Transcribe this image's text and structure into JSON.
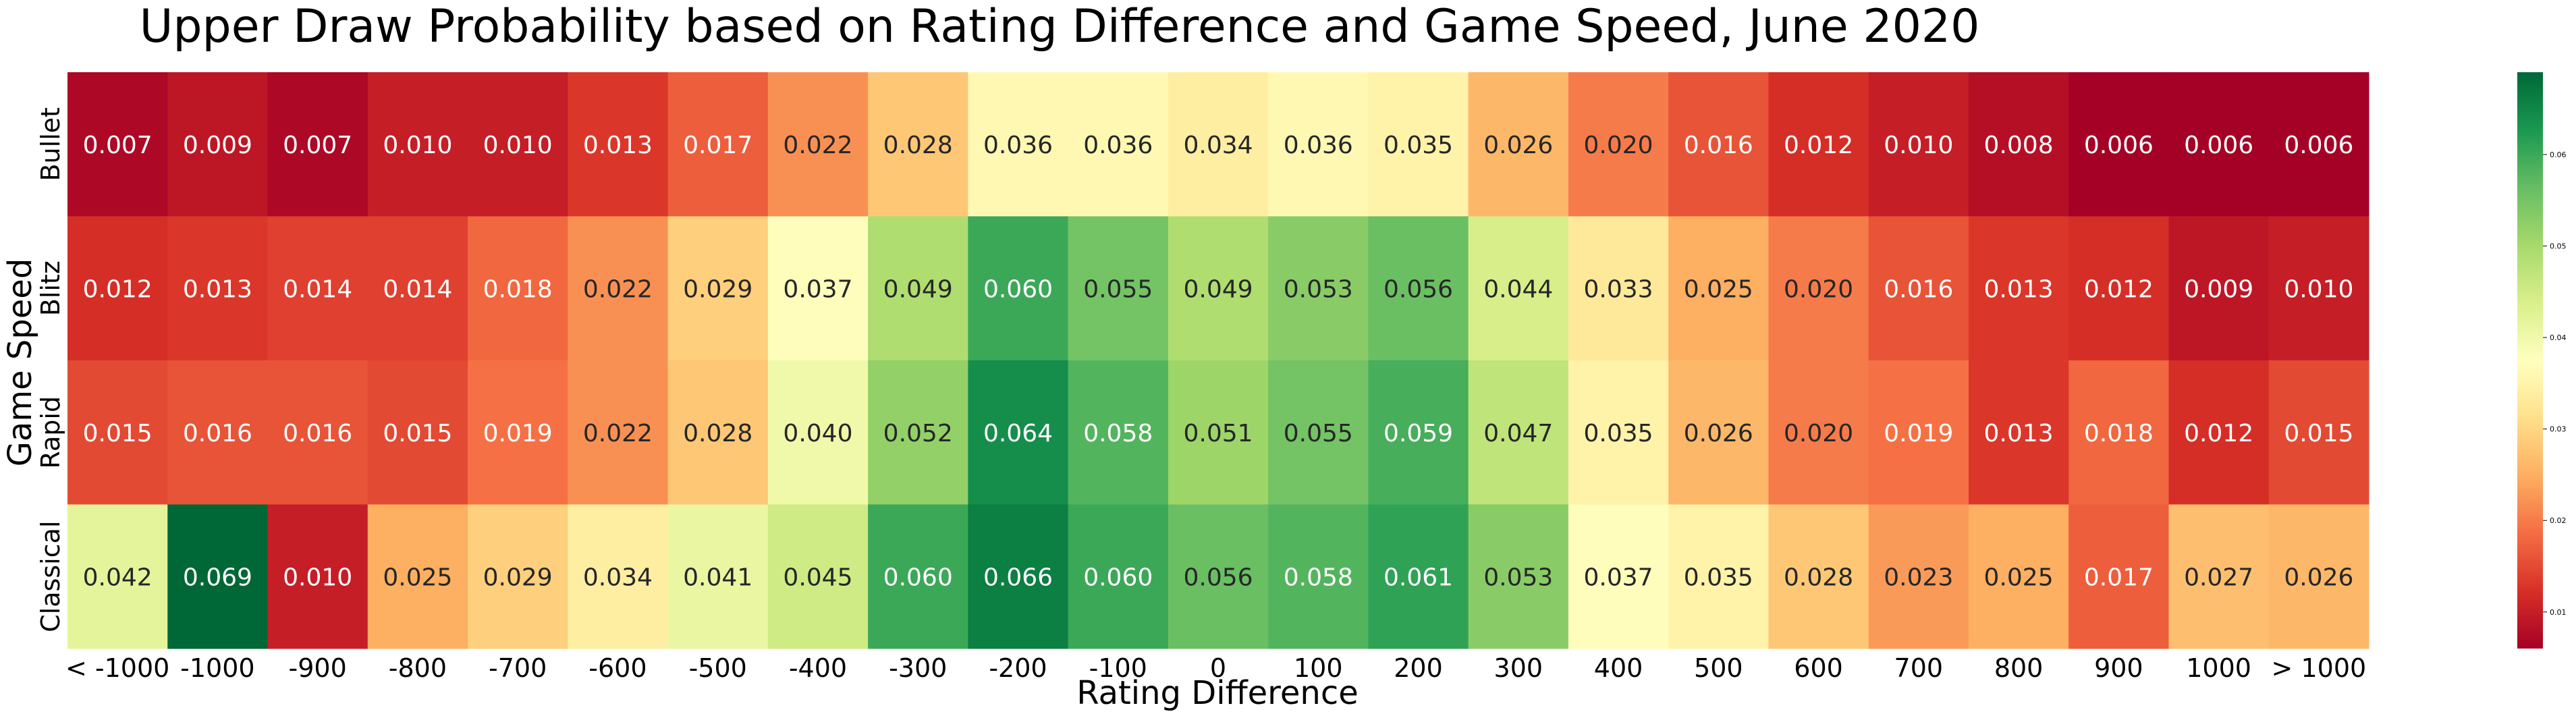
{
  "chart_data": {
    "type": "heatmap",
    "title": "Upper Draw Probability based on Rating Difference and Game Speed, June 2020",
    "xlabel": "Rating Difference",
    "ylabel": "Game Speed",
    "x_categories": [
      "< -1000",
      "-1000",
      "-900",
      "-800",
      "-700",
      "-600",
      "-500",
      "-400",
      "-300",
      "-200",
      "-100",
      "0",
      "100",
      "200",
      "300",
      "400",
      "500",
      "600",
      "700",
      "800",
      "900",
      "1000",
      "> 1000"
    ],
    "y_categories": [
      "Bullet",
      "Blitz",
      "Rapid",
      "Classical"
    ],
    "values": [
      [
        0.007,
        0.009,
        0.007,
        0.01,
        0.01,
        0.013,
        0.017,
        0.022,
        0.028,
        0.036,
        0.036,
        0.034,
        0.036,
        0.035,
        0.026,
        0.02,
        0.016,
        0.012,
        0.01,
        0.008,
        0.006,
        0.006,
        0.006
      ],
      [
        0.012,
        0.013,
        0.014,
        0.014,
        0.018,
        0.022,
        0.029,
        0.037,
        0.049,
        0.06,
        0.055,
        0.049,
        0.053,
        0.056,
        0.044,
        0.033,
        0.025,
        0.02,
        0.016,
        0.013,
        0.012,
        0.009,
        0.01
      ],
      [
        0.015,
        0.016,
        0.016,
        0.015,
        0.019,
        0.022,
        0.028,
        0.04,
        0.052,
        0.064,
        0.058,
        0.051,
        0.055,
        0.059,
        0.047,
        0.035,
        0.026,
        0.02,
        0.019,
        0.013,
        0.018,
        0.012,
        0.015
      ],
      [
        0.042,
        0.069,
        0.01,
        0.025,
        0.029,
        0.034,
        0.041,
        0.045,
        0.06,
        0.066,
        0.06,
        0.056,
        0.058,
        0.061,
        0.053,
        0.037,
        0.035,
        0.028,
        0.023,
        0.025,
        0.017,
        0.027,
        0.026
      ]
    ],
    "colormap": "RdYlGn",
    "colorbar": {
      "range": [
        0.006,
        0.069
      ],
      "ticks": [
        0.01,
        0.02,
        0.03,
        0.04,
        0.05,
        0.06
      ],
      "tick_labels": [
        "0.01",
        "0.02",
        "0.03",
        "0.04",
        "0.05",
        "0.06"
      ]
    },
    "grid": false
  }
}
